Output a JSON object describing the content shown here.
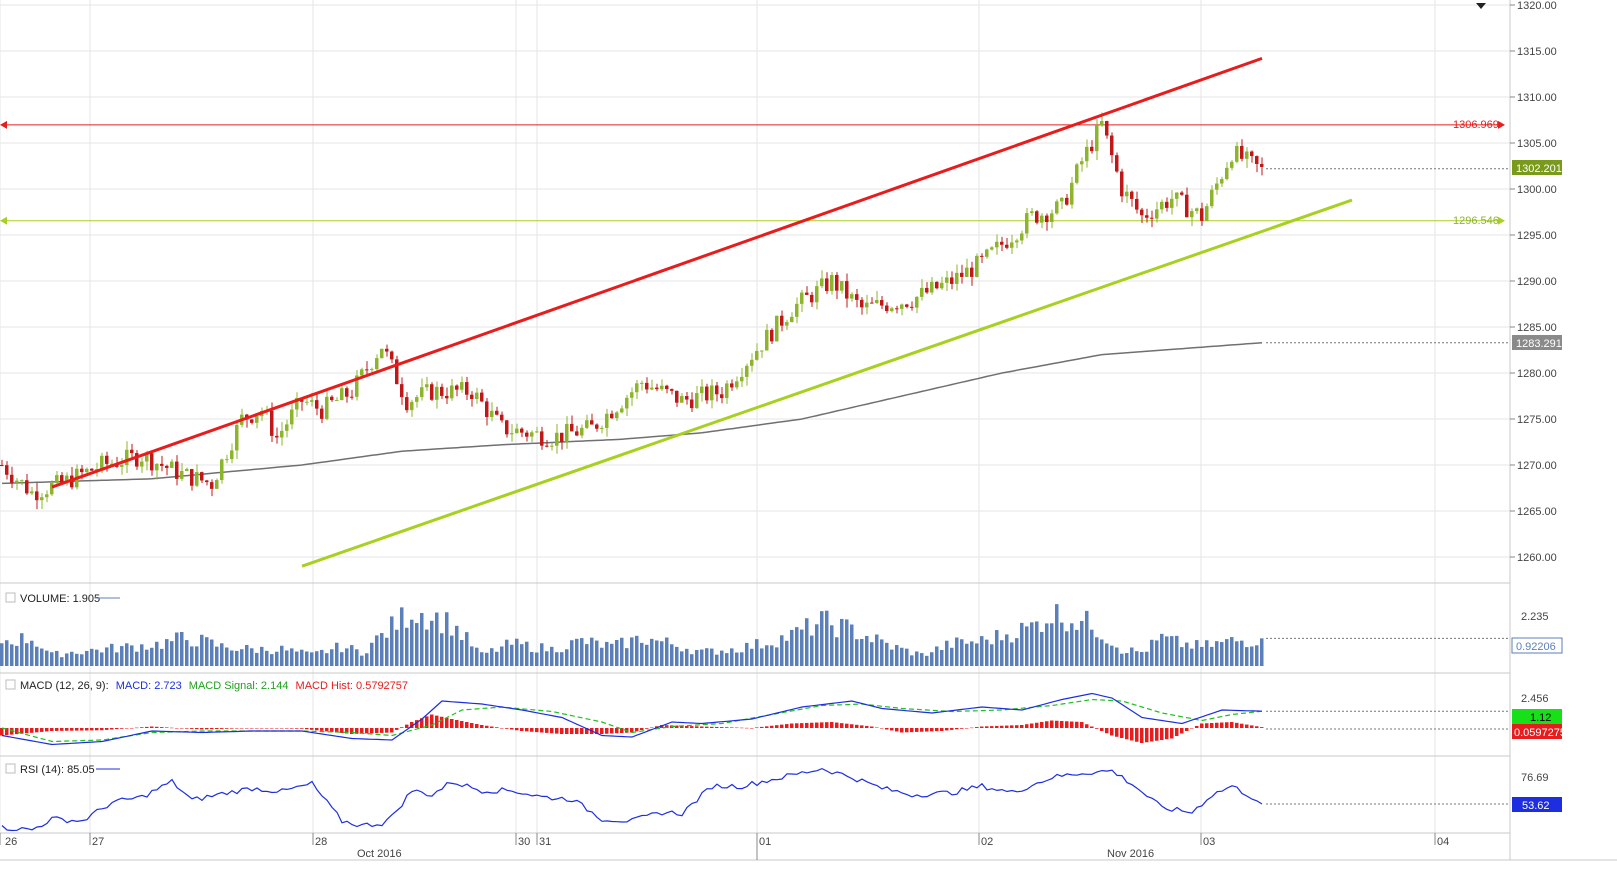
{
  "colors": {
    "background": "#ffffff",
    "grid": "#e6e6e6",
    "up_candle": "#8db52c",
    "down_candle": "#c01818",
    "resistance": "#e81c1c",
    "support": "#a8d020",
    "ma_line": "#707070",
    "volume_bar": "#5b7fb8",
    "macd_line": "#1c2ee0",
    "signal_line": "#20c020",
    "macd_hist": "#e81c1c",
    "rsi_line": "#1c2ee0",
    "green_tag": "#7a9a1c",
    "gray_tag": "#8a8a8a",
    "blue_tag": "#1c2ee0",
    "red_tag": "#e81c1c",
    "lime_tag": "#18e018"
  },
  "menu_icon": "caret-down-icon",
  "price_axis_labels": [
    "1320.00",
    "1315.00",
    "1310.00",
    "1305.00",
    "1300.00",
    "1295.00",
    "1290.00",
    "1285.00",
    "1280.00",
    "1275.00",
    "1270.00",
    "1265.00",
    "1260.00"
  ],
  "price_tags": {
    "resistance": "1306.969",
    "support": "1296.546",
    "last_price": "1302.201",
    "moving_average": "1283.291"
  },
  "volume": {
    "legend_label": "VOLUME: 1.905",
    "axis_label": "2.235",
    "last_tag": "0.92206"
  },
  "macd": {
    "legend_prefix": "MACD (12, 26, 9):",
    "legend_macd": "MACD: 2.723",
    "legend_signal": "MACD Signal: 2.144",
    "legend_hist": "MACD Hist: 0.5792757",
    "axis_label": "2.456",
    "macd_tag": "1.12",
    "hist_tag": "0.0597275"
  },
  "rsi": {
    "legend_label": "RSI (14): 85.05",
    "axis_label": "76.69",
    "last_tag": "53.62"
  },
  "time_axis": {
    "day_labels": [
      "26",
      "27",
      "28",
      "30",
      "31",
      "01",
      "02",
      "03",
      "04"
    ],
    "month_labels": [
      "Oct 2016",
      "Nov 2016"
    ]
  },
  "chart_data": {
    "type": "candlestick",
    "ylim": [
      1258,
      1321
    ],
    "grid": true,
    "close_path": [
      [
        0,
        1270
      ],
      [
        6,
        1267
      ],
      [
        12,
        1268
      ],
      [
        20,
        1270
      ],
      [
        28,
        1271
      ],
      [
        36,
        1269
      ],
      [
        42,
        1268
      ],
      [
        48,
        1275
      ],
      [
        52,
        1276
      ],
      [
        55,
        1273
      ],
      [
        60,
        1277
      ],
      [
        64,
        1276
      ],
      [
        70,
        1278
      ],
      [
        76,
        1283
      ],
      [
        81,
        1277
      ],
      [
        86,
        1278
      ],
      [
        94,
        1278
      ],
      [
        100,
        1274
      ],
      [
        110,
        1273
      ],
      [
        118,
        1274
      ],
      [
        128,
        1279
      ],
      [
        136,
        1277
      ],
      [
        144,
        1278
      ],
      [
        150,
        1282
      ],
      [
        158,
        1287
      ],
      [
        166,
        1290
      ],
      [
        172,
        1287
      ],
      [
        182,
        1288
      ],
      [
        190,
        1290
      ],
      [
        196,
        1292
      ],
      [
        206,
        1297
      ],
      [
        212,
        1298
      ],
      [
        216,
        1303
      ],
      [
        220,
        1307
      ],
      [
        224,
        1300
      ],
      [
        228,
        1297
      ],
      [
        234,
        1299
      ],
      [
        240,
        1297
      ],
      [
        246,
        1304
      ],
      [
        252,
        1302
      ]
    ],
    "moving_average": [
      [
        0,
        1268
      ],
      [
        30,
        1268.5
      ],
      [
        60,
        1270
      ],
      [
        80,
        1271.5
      ],
      [
        100,
        1272.2
      ],
      [
        124,
        1272.8
      ],
      [
        140,
        1273.5
      ],
      [
        160,
        1275
      ],
      [
        180,
        1277.5
      ],
      [
        200,
        1280
      ],
      [
        220,
        1282
      ],
      [
        252,
        1283.291
      ]
    ],
    "resistance_trendline": {
      "from": [
        10,
        1267.6
      ],
      "to": [
        252,
        1314.2
      ]
    },
    "support_trendline": {
      "from": [
        60,
        1259
      ],
      "to": [
        270,
        1298.8
      ]
    },
    "horizontal_levels": [
      1306.969,
      1296.546
    ],
    "last_price": 1302.201,
    "volume": {
      "ylim": [
        0,
        2.6
      ],
      "path": [
        [
          0,
          0.9
        ],
        [
          6,
          1.0
        ],
        [
          10,
          0.4
        ],
        [
          14,
          0.5
        ],
        [
          20,
          0.6
        ],
        [
          26,
          0.7
        ],
        [
          32,
          0.8
        ],
        [
          36,
          1.0
        ],
        [
          40,
          0.9
        ],
        [
          44,
          0.7
        ],
        [
          50,
          0.6
        ],
        [
          56,
          0.6
        ],
        [
          62,
          0.4
        ],
        [
          68,
          0.7
        ],
        [
          72,
          0.5
        ],
        [
          78,
          1.4
        ],
        [
          82,
          2.0
        ],
        [
          86,
          1.8
        ],
        [
          90,
          1.5
        ],
        [
          96,
          0.4
        ],
        [
          102,
          0.8
        ],
        [
          110,
          0.6
        ],
        [
          116,
          0.9
        ],
        [
          122,
          0.7
        ],
        [
          128,
          1.0
        ],
        [
          134,
          0.8
        ],
        [
          140,
          0.5
        ],
        [
          146,
          0.6
        ],
        [
          152,
          0.8
        ],
        [
          158,
          1.1
        ],
        [
          164,
          1.6
        ],
        [
          170,
          1.3
        ],
        [
          178,
          0.7
        ],
        [
          184,
          0.4
        ],
        [
          190,
          0.8
        ],
        [
          196,
          0.9
        ],
        [
          200,
          1.1
        ],
        [
          206,
          1.4
        ],
        [
          210,
          1.9
        ],
        [
          214,
          1.7
        ],
        [
          218,
          1.5
        ],
        [
          224,
          0.6
        ],
        [
          228,
          0.5
        ],
        [
          232,
          1.0
        ],
        [
          236,
          0.8
        ],
        [
          240,
          0.7
        ],
        [
          246,
          0.9
        ],
        [
          252,
          0.92206
        ]
      ]
    },
    "macd": {
      "ylim": [
        -1.6,
        3.2
      ],
      "macd_path": [
        [
          0,
          -0.5
        ],
        [
          10,
          -1.1
        ],
        [
          20,
          -0.9
        ],
        [
          30,
          -0.2
        ],
        [
          40,
          -0.3
        ],
        [
          50,
          -0.2
        ],
        [
          60,
          -0.2
        ],
        [
          70,
          -0.7
        ],
        [
          78,
          -0.8
        ],
        [
          84,
          0.6
        ],
        [
          88,
          1.8
        ],
        [
          96,
          1.6
        ],
        [
          104,
          1.2
        ],
        [
          112,
          0.7
        ],
        [
          120,
          -0.5
        ],
        [
          126,
          -0.6
        ],
        [
          134,
          0.4
        ],
        [
          140,
          0.3
        ],
        [
          150,
          0.6
        ],
        [
          160,
          1.4
        ],
        [
          170,
          1.8
        ],
        [
          176,
          1.3
        ],
        [
          186,
          1.0
        ],
        [
          196,
          1.4
        ],
        [
          204,
          1.2
        ],
        [
          212,
          1.9
        ],
        [
          218,
          2.3
        ],
        [
          222,
          2.0
        ],
        [
          228,
          0.7
        ],
        [
          236,
          0.3
        ],
        [
          244,
          1.2
        ],
        [
          252,
          1.12
        ]
      ],
      "signal_path": [
        [
          0,
          0.0
        ],
        [
          10,
          -0.9
        ],
        [
          20,
          -0.8
        ],
        [
          30,
          -0.3
        ],
        [
          40,
          -0.2
        ],
        [
          50,
          -0.2
        ],
        [
          60,
          -0.2
        ],
        [
          70,
          -0.3
        ],
        [
          78,
          -0.5
        ],
        [
          86,
          0.2
        ],
        [
          92,
          1.2
        ],
        [
          100,
          1.4
        ],
        [
          110,
          1.1
        ],
        [
          120,
          0.4
        ],
        [
          126,
          -0.3
        ],
        [
          134,
          0.1
        ],
        [
          144,
          0.3
        ],
        [
          154,
          0.9
        ],
        [
          164,
          1.5
        ],
        [
          172,
          1.6
        ],
        [
          180,
          1.3
        ],
        [
          190,
          1.1
        ],
        [
          200,
          1.2
        ],
        [
          210,
          1.5
        ],
        [
          218,
          1.9
        ],
        [
          224,
          1.8
        ],
        [
          232,
          1.0
        ],
        [
          240,
          0.5
        ],
        [
          246,
          0.9
        ],
        [
          252,
          1.12
        ]
      ],
      "hist_path": [
        [
          0,
          -0.5
        ],
        [
          10,
          -0.2
        ],
        [
          20,
          -0.15
        ],
        [
          30,
          0.1
        ],
        [
          40,
          -0.1
        ],
        [
          50,
          0.0
        ],
        [
          60,
          -0.05
        ],
        [
          70,
          -0.4
        ],
        [
          78,
          -0.3
        ],
        [
          82,
          0.4
        ],
        [
          86,
          0.9
        ],
        [
          90,
          0.6
        ],
        [
          96,
          0.2
        ],
        [
          104,
          -0.2
        ],
        [
          112,
          -0.4
        ],
        [
          120,
          -0.4
        ],
        [
          126,
          -0.3
        ],
        [
          132,
          0.2
        ],
        [
          140,
          0.1
        ],
        [
          150,
          0.0
        ],
        [
          158,
          0.3
        ],
        [
          166,
          0.4
        ],
        [
          174,
          0.1
        ],
        [
          180,
          -0.3
        ],
        [
          188,
          -0.2
        ],
        [
          196,
          0.1
        ],
        [
          204,
          0.2
        ],
        [
          210,
          0.5
        ],
        [
          216,
          0.4
        ],
        [
          222,
          -0.5
        ],
        [
          228,
          -1.0
        ],
        [
          234,
          -0.7
        ],
        [
          240,
          0.3
        ],
        [
          246,
          0.4
        ],
        [
          252,
          0.0597275
        ]
      ]
    },
    "rsi": {
      "ylim": [
        28,
        92
      ],
      "path": [
        [
          0,
          32
        ],
        [
          6,
          30
        ],
        [
          10,
          40
        ],
        [
          16,
          38
        ],
        [
          22,
          55
        ],
        [
          28,
          60
        ],
        [
          34,
          74
        ],
        [
          38,
          57
        ],
        [
          44,
          63
        ],
        [
          50,
          68
        ],
        [
          56,
          65
        ],
        [
          62,
          72
        ],
        [
          68,
          38
        ],
        [
          72,
          34
        ],
        [
          76,
          36
        ],
        [
          78,
          42
        ],
        [
          82,
          66
        ],
        [
          86,
          62
        ],
        [
          90,
          74
        ],
        [
          96,
          66
        ],
        [
          102,
          66
        ],
        [
          108,
          60
        ],
        [
          114,
          58
        ],
        [
          120,
          40
        ],
        [
          126,
          38
        ],
        [
          132,
          46
        ],
        [
          136,
          45
        ],
        [
          142,
          70
        ],
        [
          148,
          70
        ],
        [
          156,
          78
        ],
        [
          164,
          86
        ],
        [
          170,
          78
        ],
        [
          176,
          68
        ],
        [
          182,
          62
        ],
        [
          190,
          64
        ],
        [
          196,
          70
        ],
        [
          202,
          64
        ],
        [
          210,
          78
        ],
        [
          216,
          82
        ],
        [
          222,
          84
        ],
        [
          226,
          72
        ],
        [
          232,
          50
        ],
        [
          238,
          46
        ],
        [
          242,
          62
        ],
        [
          246,
          70
        ],
        [
          250,
          60
        ],
        [
          252,
          53.62
        ]
      ]
    }
  }
}
